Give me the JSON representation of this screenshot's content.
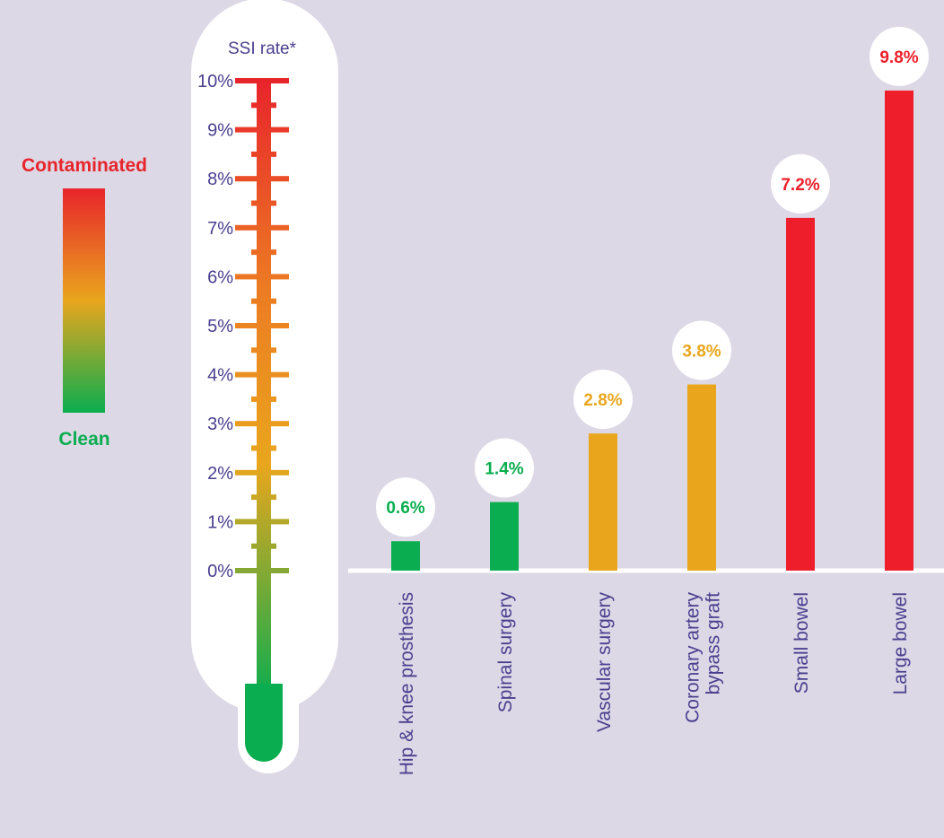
{
  "legend": {
    "top_label": "Contaminated",
    "bottom_label": "Clean",
    "top_color": "#e8242b",
    "bottom_color": "#0aad4f"
  },
  "thermometer": {
    "title": "SSI rate*",
    "ticks": [
      "0%",
      "1%",
      "2%",
      "3%",
      "4%",
      "5%",
      "6%",
      "7%",
      "8%",
      "9%",
      "10%"
    ]
  },
  "colors": {
    "background": "#dcd8e6",
    "label_text": "#4a3f8f",
    "green": "#0aad4f",
    "orange": "#e9a61d",
    "red": "#ee1f2a",
    "scale_red": "#e8242b",
    "scale_orange": "#ec7a23",
    "scale_yellow": "#e9a61d",
    "scale_green": "#0aad4f"
  },
  "chart_data": {
    "type": "bar",
    "title": "",
    "xlabel": "",
    "ylabel": "SSI rate*",
    "ylim": [
      0,
      10
    ],
    "categories": [
      "Hip & knee prosthesis",
      "Spinal surgery",
      "Vascular surgery",
      "Coronary artery bypass graft",
      "Small bowel",
      "Large bowel"
    ],
    "category_lines": [
      [
        "Hip & knee prosthesis"
      ],
      [
        "Spinal surgery"
      ],
      [
        "Vascular surgery"
      ],
      [
        "Coronary artery",
        "bypass graft"
      ],
      [
        "Small bowel"
      ],
      [
        "Large bowel"
      ]
    ],
    "values": [
      0.6,
      1.4,
      2.8,
      3.8,
      7.2,
      9.8
    ],
    "value_labels": [
      "0.6%",
      "1.4%",
      "2.8%",
      "3.8%",
      "7.2%",
      "9.8%"
    ],
    "bar_colors": [
      "green",
      "green",
      "orange",
      "orange",
      "red",
      "red"
    ]
  }
}
